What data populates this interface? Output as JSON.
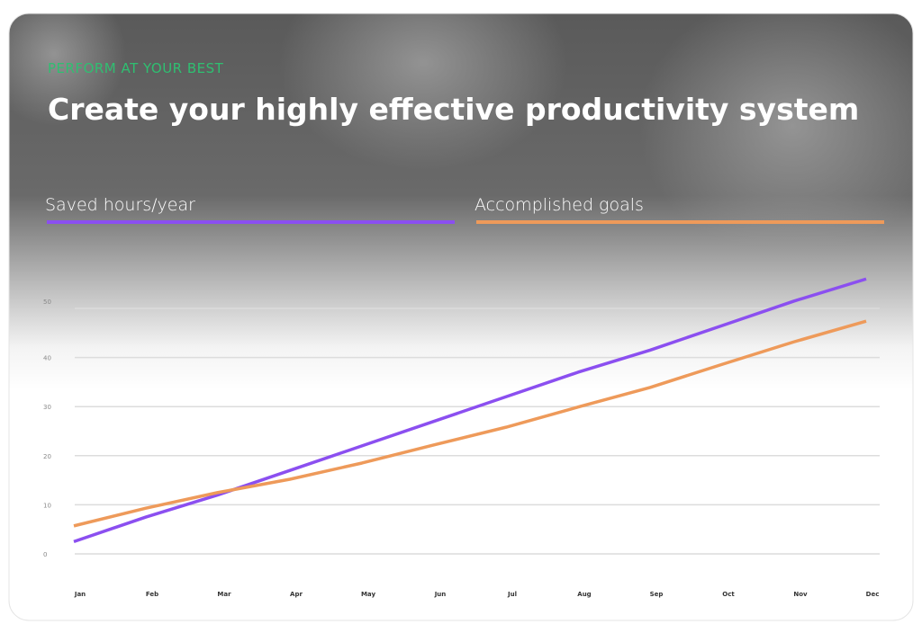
{
  "eyebrow": "PERFORM AT YOUR BEST",
  "chart_data": {
    "type": "line",
    "title": "Create your highly effective productivity system",
    "categories": [
      "Jan",
      "Feb",
      "Mar",
      "Apr",
      "May",
      "Jun",
      "Jul",
      "Aug",
      "Sep",
      "Oct",
      "Nov",
      "Dec"
    ],
    "series": [
      {
        "name": "Saved hours/year",
        "color": "#8b4ff0",
        "values": [
          2.5,
          7.5,
          12,
          17,
          22,
          27,
          32,
          37,
          41.5,
          46.5,
          51.5,
          56
        ]
      },
      {
        "name": "Accomplished goals",
        "color": "#ee9a5a",
        "values": [
          5.7,
          9.3,
          12.5,
          15.2,
          18.5,
          22.2,
          25.8,
          29.9,
          33.9,
          38.6,
          43.2,
          47.4
        ]
      }
    ],
    "ylim": [
      0,
      50
    ],
    "yticks": [
      0,
      10,
      20,
      30,
      40,
      50
    ],
    "grid": true
  }
}
